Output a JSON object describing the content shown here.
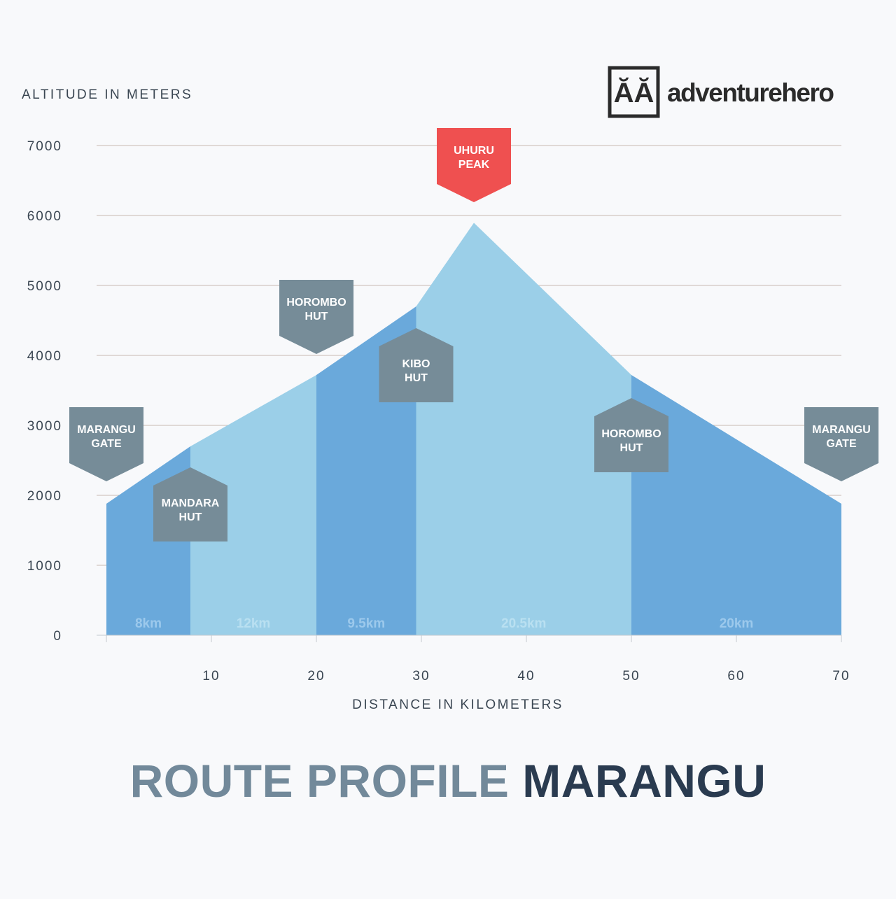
{
  "title": {
    "part1": "ROUTE PROFILE",
    "part2": "MARANGU"
  },
  "logo": {
    "name": "adventurehero",
    "mark": "ĂĂ"
  },
  "chart_data": {
    "type": "area",
    "ylabel": "ALTITUDE IN METERS",
    "xlabel": "DISTANCE IN KILOMETERS",
    "ylim": [
      0,
      7000
    ],
    "xlim": [
      0,
      70
    ],
    "yticks": [
      0,
      1000,
      2000,
      3000,
      4000,
      5000,
      6000,
      7000
    ],
    "xticks": [
      10,
      20,
      30,
      40,
      50,
      60,
      70
    ],
    "grid": true,
    "profile": [
      {
        "x": 0,
        "y": 1880
      },
      {
        "x": 8,
        "y": 2700
      },
      {
        "x": 20,
        "y": 3720
      },
      {
        "x": 29.5,
        "y": 4700
      },
      {
        "x": 35,
        "y": 5895
      },
      {
        "x": 50,
        "y": 3720
      },
      {
        "x": 70,
        "y": 1880
      }
    ],
    "segments": [
      {
        "label": "8km",
        "from": 0,
        "to": 8,
        "shade": "dark"
      },
      {
        "label": "12km",
        "from": 8,
        "to": 20,
        "shade": "light"
      },
      {
        "label": "9.5km",
        "from": 20,
        "to": 29.5,
        "shade": "dark"
      },
      {
        "label": "20.5km",
        "from": 29.5,
        "to": 50,
        "shade": "light"
      },
      {
        "label": "20km",
        "from": 50,
        "to": 70,
        "shade": "dark"
      }
    ],
    "markers": [
      {
        "lines": [
          "MARANGU",
          "GATE"
        ],
        "x": 0,
        "alt": 2200,
        "dir": "down",
        "color": "#768c98"
      },
      {
        "lines": [
          "MANDARA",
          "HUT"
        ],
        "x": 8,
        "alt": 2400,
        "dir": "up",
        "color": "#768c98"
      },
      {
        "lines": [
          "HOROMBO",
          "HUT"
        ],
        "x": 20,
        "alt": 4020,
        "dir": "down",
        "color": "#768c98"
      },
      {
        "lines": [
          "KIBO",
          "HUT"
        ],
        "x": 29.5,
        "alt": 4390,
        "dir": "up",
        "color": "#768c98"
      },
      {
        "lines": [
          "UHURU",
          "PEAK"
        ],
        "x": 35,
        "alt": 6190,
        "dir": "down",
        "color": "#ef5050"
      },
      {
        "lines": [
          "HOROMBO",
          "HUT"
        ],
        "x": 50,
        "alt": 3390,
        "dir": "up",
        "color": "#768c98"
      },
      {
        "lines": [
          "MARANGU",
          "GATE"
        ],
        "x": 70,
        "alt": 2200,
        "dir": "down",
        "color": "#768c98"
      }
    ],
    "colors": {
      "dark": "#6aa9db",
      "light": "#9bcfe8",
      "grid": "#c7b9b0",
      "axis": "#c4c9cf",
      "tick_text": "#3a4652",
      "seg_label_dark": "#9cc9ec",
      "seg_label_light": "#b9e0f1"
    }
  }
}
